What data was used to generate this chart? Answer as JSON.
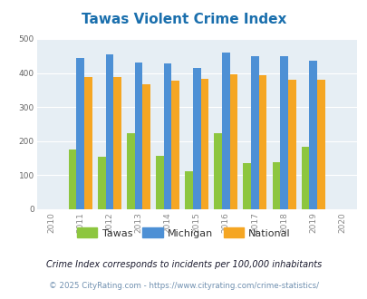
{
  "title": "Tawas Violent Crime Index",
  "title_color": "#1a6fad",
  "years": [
    2011,
    2012,
    2013,
    2014,
    2015,
    2016,
    2017,
    2018,
    2019
  ],
  "tawas": [
    175,
    153,
    222,
    157,
    111,
    222,
    135,
    139,
    183
  ],
  "michigan": [
    443,
    455,
    431,
    428,
    415,
    461,
    450,
    450,
    437
  ],
  "national": [
    387,
    387,
    367,
    377,
    383,
    397,
    394,
    380,
    379
  ],
  "tawas_color": "#8dc63f",
  "michigan_color": "#4d90d5",
  "national_color": "#f5a623",
  "bg_color": "#e6eef4",
  "xlim": [
    2009.5,
    2020.5
  ],
  "ylim": [
    0,
    500
  ],
  "yticks": [
    0,
    100,
    200,
    300,
    400,
    500
  ],
  "xticks": [
    2010,
    2011,
    2012,
    2013,
    2014,
    2015,
    2016,
    2017,
    2018,
    2019,
    2020
  ],
  "bar_width": 0.27,
  "legend_labels": [
    "Tawas",
    "Michigan",
    "National"
  ],
  "footnote1": "Crime Index corresponds to incidents per 100,000 inhabitants",
  "footnote2": "© 2025 CityRating.com - https://www.cityrating.com/crime-statistics/",
  "footnote1_color": "#1a1a2e",
  "footnote2_color": "#7090b0"
}
